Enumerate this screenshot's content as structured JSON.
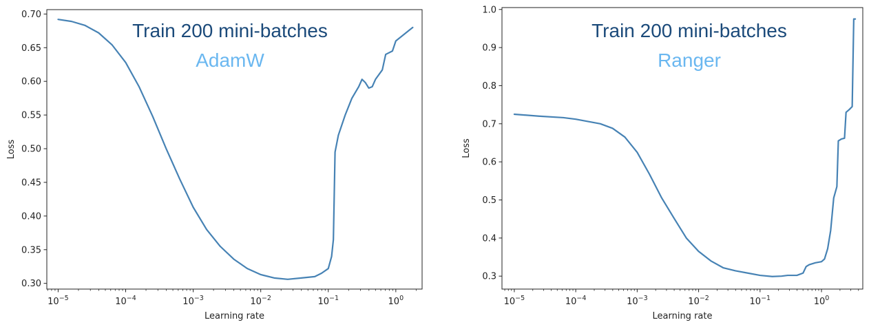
{
  "colors": {
    "line": "#4682b4",
    "title": "#1b4a7a",
    "subtitle": "#6ab7f0",
    "axis": "#222222"
  },
  "chart_data": [
    {
      "type": "line",
      "title": "Train 200 mini-batches",
      "subtitle": "AdamW",
      "xlabel": "Learning rate",
      "ylabel": "Loss",
      "xscale": "log",
      "xlim": [
        6.8e-06,
        2.45
      ],
      "ylim": [
        0.2915,
        0.7065
      ],
      "xticks": [
        1e-05,
        0.0001,
        0.001,
        0.01,
        0.1,
        1
      ],
      "xtick_labels": [
        {
          "b": "10",
          "e": "−5"
        },
        {
          "b": "10",
          "e": "−4"
        },
        {
          "b": "10",
          "e": "−3"
        },
        {
          "b": "10",
          "e": "−2"
        },
        {
          "b": "10",
          "e": "−1"
        },
        {
          "b": "10",
          "e": "0"
        }
      ],
      "yticks": [
        0.3,
        0.35,
        0.4,
        0.45,
        0.5,
        0.55,
        0.6,
        0.65,
        0.7
      ],
      "ytick_labels": [
        "0.30",
        "0.35",
        "0.40",
        "0.45",
        "0.50",
        "0.55",
        "0.60",
        "0.65",
        "0.70"
      ],
      "grid": false,
      "points": [
        [
          1e-05,
          0.692
        ],
        [
          1.58e-05,
          0.689
        ],
        [
          2.51e-05,
          0.683
        ],
        [
          3.98e-05,
          0.672
        ],
        [
          6.31e-05,
          0.654
        ],
        [
          0.0001,
          0.628
        ],
        [
          0.000158,
          0.592
        ],
        [
          0.000251,
          0.548
        ],
        [
          0.000398,
          0.5
        ],
        [
          0.000631,
          0.455
        ],
        [
          0.001,
          0.413
        ],
        [
          0.00158,
          0.38
        ],
        [
          0.00251,
          0.355
        ],
        [
          0.00398,
          0.336
        ],
        [
          0.00631,
          0.322
        ],
        [
          0.01,
          0.313
        ],
        [
          0.0158,
          0.308
        ],
        [
          0.0251,
          0.306
        ],
        [
          0.0398,
          0.308
        ],
        [
          0.0631,
          0.31
        ],
        [
          0.0794,
          0.315
        ],
        [
          0.1,
          0.322
        ],
        [
          0.112,
          0.34
        ],
        [
          0.119,
          0.365
        ],
        [
          0.126,
          0.495
        ],
        [
          0.141,
          0.52
        ],
        [
          0.178,
          0.55
        ],
        [
          0.224,
          0.575
        ],
        [
          0.282,
          0.592
        ],
        [
          0.316,
          0.603
        ],
        [
          0.355,
          0.598
        ],
        [
          0.398,
          0.59
        ],
        [
          0.447,
          0.592
        ],
        [
          0.5,
          0.603
        ],
        [
          0.631,
          0.617
        ],
        [
          0.708,
          0.64
        ],
        [
          0.891,
          0.645
        ],
        [
          1.0,
          0.66
        ],
        [
          1.26,
          0.668
        ],
        [
          1.58,
          0.676
        ],
        [
          1.78,
          0.68
        ]
      ]
    },
    {
      "type": "line",
      "title": "Train 200 mini-batches",
      "subtitle": "Ranger",
      "xlabel": "Learning rate",
      "ylabel": "Loss",
      "xscale": "log",
      "xlim": [
        6.3e-06,
        4.7
      ],
      "ylim": [
        0.266,
        1.005
      ],
      "xticks": [
        1e-05,
        0.0001,
        0.001,
        0.01,
        0.1,
        1
      ],
      "xtick_labels": [
        {
          "b": "10",
          "e": "−5"
        },
        {
          "b": "10",
          "e": "−4"
        },
        {
          "b": "10",
          "e": "−3"
        },
        {
          "b": "10",
          "e": "−2"
        },
        {
          "b": "10",
          "e": "−1"
        },
        {
          "b": "10",
          "e": "0"
        }
      ],
      "yticks": [
        0.3,
        0.4,
        0.5,
        0.6,
        0.7,
        0.8,
        0.9,
        1.0
      ],
      "ytick_labels": [
        "0.3",
        "0.4",
        "0.5",
        "0.6",
        "0.7",
        "0.8",
        "0.9",
        "1.0"
      ],
      "grid": false,
      "points": [
        [
          1e-05,
          0.725
        ],
        [
          2.51e-05,
          0.72
        ],
        [
          6.31e-05,
          0.716
        ],
        [
          0.0001,
          0.712
        ],
        [
          0.000251,
          0.7
        ],
        [
          0.000398,
          0.688
        ],
        [
          0.000631,
          0.665
        ],
        [
          0.001,
          0.625
        ],
        [
          0.00158,
          0.568
        ],
        [
          0.00251,
          0.505
        ],
        [
          0.00398,
          0.452
        ],
        [
          0.00631,
          0.4
        ],
        [
          0.01,
          0.365
        ],
        [
          0.0158,
          0.34
        ],
        [
          0.0251,
          0.322
        ],
        [
          0.0398,
          0.314
        ],
        [
          0.0631,
          0.308
        ],
        [
          0.1,
          0.302
        ],
        [
          0.158,
          0.299
        ],
        [
          0.224,
          0.3
        ],
        [
          0.282,
          0.302
        ],
        [
          0.398,
          0.302
        ],
        [
          0.501,
          0.308
        ],
        [
          0.562,
          0.325
        ],
        [
          0.631,
          0.33
        ],
        [
          0.794,
          0.335
        ],
        [
          1.0,
          0.338
        ],
        [
          1.12,
          0.345
        ],
        [
          1.26,
          0.372
        ],
        [
          1.41,
          0.42
        ],
        [
          1.58,
          0.505
        ],
        [
          1.78,
          0.535
        ],
        [
          1.88,
          0.655
        ],
        [
          2.11,
          0.66
        ],
        [
          2.37,
          0.662
        ],
        [
          2.51,
          0.73
        ],
        [
          2.82,
          0.737
        ],
        [
          3.16,
          0.745
        ],
        [
          3.35,
          0.975
        ],
        [
          3.55,
          0.975
        ]
      ]
    }
  ]
}
